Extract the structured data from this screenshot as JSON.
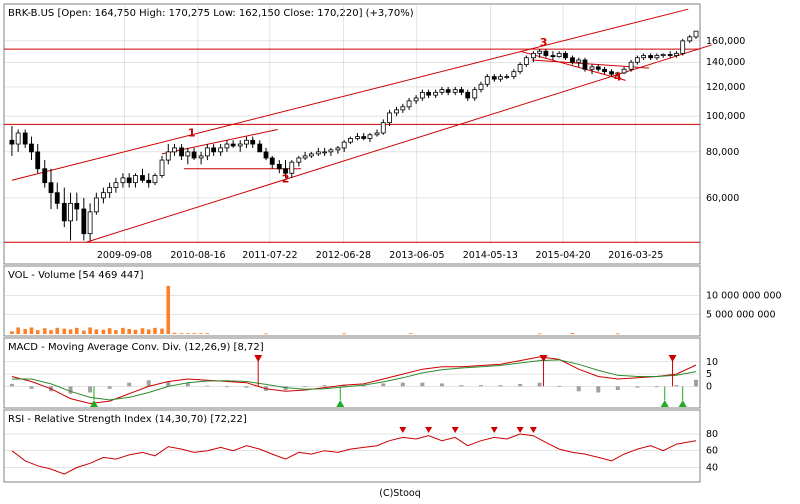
{
  "footer": "(C)Stooq",
  "colors": {
    "up": "#ffffff",
    "down": "#000000",
    "channel": "#cc0000",
    "volume": "#ff7f27",
    "macd": "#cc0000",
    "signal": "#2e8b2e",
    "hist": "#a0a0a0",
    "rsi": "#cc0000",
    "grid": "#c8c8c8",
    "buy_marker": "#22aa22",
    "sell_marker": "#cc0000"
  },
  "chart_data": [
    {
      "type": "candlestick",
      "title": "BRK-B.US [Open: 164,750  High: 170,275  Low: 162,150  Close: 170,220] (+3,70%)",
      "y_scale": "log",
      "ylim": [
        45,
        180
      ],
      "y_ticks": [
        60,
        80,
        100,
        120,
        140,
        160
      ],
      "y_tick_labels": [
        "60,000",
        "80,000",
        "100,000",
        "120,000",
        "140,000",
        "160,000"
      ],
      "x_range": [
        2008.2,
        2017.0
      ],
      "x_ticks": [
        2009.69,
        2010.63,
        2011.55,
        2012.49,
        2013.43,
        2014.37,
        2015.3,
        2016.23
      ],
      "x_tick_labels": [
        "2009-09-08",
        "2010-08-16",
        "2011-07-22",
        "2012-06-28",
        "2013-06-05",
        "2014-05-13",
        "2015-04-20",
        "2016-03-25"
      ],
      "ohlc_points": [
        [
          2008.25,
          86,
          94,
          78,
          84
        ],
        [
          2008.33,
          84,
          92,
          80,
          90
        ],
        [
          2008.42,
          90,
          92,
          82,
          84
        ],
        [
          2008.5,
          84,
          88,
          76,
          80
        ],
        [
          2008.58,
          80,
          84,
          70,
          72
        ],
        [
          2008.67,
          72,
          76,
          64,
          66
        ],
        [
          2008.75,
          66,
          72,
          56,
          62
        ],
        [
          2008.83,
          62,
          66,
          56,
          58
        ],
        [
          2008.92,
          58,
          64,
          50,
          52
        ],
        [
          2009.0,
          52,
          62,
          46,
          58
        ],
        [
          2009.08,
          58,
          62,
          52,
          56
        ],
        [
          2009.17,
          56,
          60,
          46,
          48
        ],
        [
          2009.25,
          48,
          58,
          46,
          55
        ],
        [
          2009.33,
          55,
          62,
          54,
          60
        ],
        [
          2009.42,
          60,
          64,
          58,
          62
        ],
        [
          2009.5,
          62,
          66,
          60,
          64
        ],
        [
          2009.58,
          64,
          68,
          62,
          66
        ],
        [
          2009.67,
          66,
          70,
          64,
          68
        ],
        [
          2009.75,
          68,
          70,
          64,
          66
        ],
        [
          2009.83,
          66,
          70,
          64,
          69
        ],
        [
          2009.92,
          69,
          72,
          66,
          67
        ],
        [
          2010.0,
          67,
          70,
          64,
          66
        ],
        [
          2010.08,
          66,
          70,
          65,
          69
        ],
        [
          2010.17,
          69,
          78,
          68,
          76
        ],
        [
          2010.25,
          76,
          84,
          74,
          80
        ],
        [
          2010.33,
          80,
          84,
          78,
          82
        ],
        [
          2010.42,
          82,
          84,
          76,
          78
        ],
        [
          2010.5,
          78,
          82,
          74,
          80
        ],
        [
          2010.58,
          80,
          82,
          76,
          77
        ],
        [
          2010.67,
          77,
          80,
          74,
          78
        ],
        [
          2010.75,
          78,
          84,
          76,
          82
        ],
        [
          2010.83,
          82,
          84,
          78,
          80
        ],
        [
          2010.92,
          80,
          84,
          78,
          82
        ],
        [
          2011.0,
          82,
          86,
          80,
          84
        ],
        [
          2011.08,
          84,
          86,
          82,
          83
        ],
        [
          2011.17,
          83,
          86,
          80,
          84
        ],
        [
          2011.25,
          84,
          88,
          82,
          86
        ],
        [
          2011.33,
          86,
          88,
          82,
          84
        ],
        [
          2011.42,
          84,
          86,
          80,
          80
        ],
        [
          2011.5,
          80,
          82,
          76,
          77
        ],
        [
          2011.58,
          77,
          78,
          72,
          74
        ],
        [
          2011.67,
          74,
          76,
          70,
          72
        ],
        [
          2011.75,
          72,
          76,
          68,
          70
        ],
        [
          2011.83,
          70,
          76,
          68,
          75
        ],
        [
          2011.92,
          75,
          78,
          73,
          77
        ],
        [
          2012.0,
          77,
          80,
          76,
          78
        ],
        [
          2012.08,
          78,
          80,
          77,
          79
        ],
        [
          2012.17,
          79,
          82,
          78,
          80
        ],
        [
          2012.25,
          80,
          82,
          78,
          80
        ],
        [
          2012.33,
          80,
          82,
          78,
          81
        ],
        [
          2012.42,
          81,
          83,
          79,
          82
        ],
        [
          2012.5,
          82,
          86,
          80,
          85
        ],
        [
          2012.58,
          85,
          88,
          84,
          87
        ],
        [
          2012.67,
          87,
          90,
          86,
          88
        ],
        [
          2012.75,
          88,
          90,
          86,
          87
        ],
        [
          2012.83,
          87,
          90,
          85,
          89
        ],
        [
          2012.92,
          89,
          92,
          88,
          90
        ],
        [
          2013.0,
          90,
          98,
          89,
          96
        ],
        [
          2013.08,
          96,
          104,
          94,
          102
        ],
        [
          2013.17,
          102,
          106,
          100,
          104
        ],
        [
          2013.25,
          104,
          108,
          102,
          106
        ],
        [
          2013.33,
          106,
          112,
          104,
          110
        ],
        [
          2013.42,
          110,
          114,
          108,
          112
        ],
        [
          2013.5,
          112,
          118,
          110,
          116
        ],
        [
          2013.58,
          116,
          118,
          112,
          114
        ],
        [
          2013.67,
          114,
          118,
          112,
          116
        ],
        [
          2013.75,
          116,
          120,
          114,
          118
        ],
        [
          2013.83,
          118,
          120,
          114,
          116
        ],
        [
          2013.92,
          116,
          120,
          114,
          118
        ],
        [
          2014.0,
          118,
          120,
          114,
          116
        ],
        [
          2014.08,
          116,
          118,
          110,
          112
        ],
        [
          2014.17,
          112,
          120,
          110,
          118
        ],
        [
          2014.25,
          118,
          124,
          116,
          122
        ],
        [
          2014.33,
          122,
          130,
          120,
          128
        ],
        [
          2014.42,
          128,
          130,
          124,
          126
        ],
        [
          2014.5,
          126,
          130,
          124,
          128
        ],
        [
          2014.58,
          128,
          130,
          126,
          128
        ],
        [
          2014.67,
          128,
          134,
          126,
          132
        ],
        [
          2014.75,
          132,
          140,
          130,
          138
        ],
        [
          2014.83,
          138,
          146,
          136,
          144
        ],
        [
          2014.92,
          144,
          150,
          140,
          148
        ],
        [
          2015.0,
          148,
          152,
          144,
          150
        ],
        [
          2015.08,
          150,
          152,
          144,
          146
        ],
        [
          2015.17,
          146,
          150,
          142,
          145
        ],
        [
          2015.25,
          145,
          150,
          144,
          148
        ],
        [
          2015.33,
          148,
          150,
          142,
          144
        ],
        [
          2015.42,
          144,
          146,
          138,
          140
        ],
        [
          2015.5,
          140,
          144,
          136,
          142
        ],
        [
          2015.58,
          142,
          144,
          132,
          134
        ],
        [
          2015.67,
          134,
          138,
          130,
          136
        ],
        [
          2015.75,
          136,
          138,
          132,
          134
        ],
        [
          2015.83,
          134,
          136,
          130,
          132
        ],
        [
          2015.92,
          132,
          134,
          128,
          130
        ],
        [
          2016.0,
          130,
          132,
          128,
          131
        ],
        [
          2016.08,
          131,
          136,
          130,
          134
        ],
        [
          2016.17,
          134,
          142,
          132,
          140
        ],
        [
          2016.25,
          140,
          146,
          138,
          144
        ],
        [
          2016.33,
          144,
          148,
          142,
          146
        ],
        [
          2016.42,
          146,
          148,
          142,
          144
        ],
        [
          2016.5,
          144,
          148,
          142,
          146
        ],
        [
          2016.58,
          146,
          148,
          144,
          147
        ],
        [
          2016.67,
          147,
          150,
          144,
          146
        ],
        [
          2016.75,
          146,
          150,
          144,
          148
        ],
        [
          2016.83,
          148,
          162,
          146,
          160
        ],
        [
          2016.92,
          160,
          166,
          158,
          164
        ],
        [
          2017.0,
          164,
          170,
          162,
          170
        ]
      ],
      "horizontal_lines": [
        95,
        152,
        45.5
      ],
      "trend_lines": [
        {
          "from": [
            2008.25,
            67
          ],
          "to": [
            2016.9,
            195
          ]
        },
        {
          "from": [
            2009.2,
            45.5
          ],
          "to": [
            2017.2,
            156
          ]
        },
        {
          "from": [
            2010.17,
            79
          ],
          "to": [
            2011.65,
            92
          ]
        },
        {
          "from": [
            2010.45,
            72
          ],
          "to": [
            2011.95,
            72
          ]
        },
        {
          "from": [
            2014.75,
            150
          ],
          "to": [
            2016.1,
            125
          ]
        },
        {
          "from": [
            2014.9,
            142
          ],
          "to": [
            2016.4,
            135
          ]
        }
      ],
      "annotations": [
        {
          "text": "1",
          "x": 2010.55,
          "y": 88
        },
        {
          "text": "2",
          "x": 2011.75,
          "y": 66
        },
        {
          "text": "3",
          "x": 2015.05,
          "y": 155
        },
        {
          "text": "4",
          "x": 2016.0,
          "y": 125
        }
      ]
    },
    {
      "type": "bar",
      "title": "VOL - Volume [54 469 447]",
      "ylim": [
        0,
        13500000000
      ],
      "y_ticks": [
        5000000000,
        10000000000
      ],
      "y_tick_labels": [
        "5 000 000 000",
        "10 000 000 000"
      ],
      "x_range": [
        2008.2,
        2017.0
      ],
      "x": [
        2008.25,
        2008.33,
        2008.42,
        2008.5,
        2008.58,
        2008.67,
        2008.75,
        2008.83,
        2008.92,
        2009.0,
        2009.08,
        2009.17,
        2009.25,
        2009.33,
        2009.42,
        2009.5,
        2009.58,
        2009.67,
        2009.75,
        2009.83,
        2009.92,
        2010.0,
        2010.08,
        2010.17,
        2010.25,
        2010.33,
        2010.42,
        2010.5,
        2010.58,
        2010.67,
        2010.75,
        2011.5,
        2012.5,
        2013.35,
        2015.0,
        2015.42,
        2016.0
      ],
      "values": [
        700000000,
        1700000000,
        1300000000,
        1700000000,
        1000000000,
        1500000000,
        1000000000,
        1600000000,
        1400000000,
        1200000000,
        1600000000,
        900000000,
        1700000000,
        1200000000,
        1100000000,
        1500000000,
        1000000000,
        1600000000,
        1300000000,
        1100000000,
        1500000000,
        1200000000,
        1600000000,
        1400000000,
        12500000000,
        300000000,
        200000000,
        200000000,
        200000000,
        200000000,
        200000000,
        150000000,
        150000000,
        200000000,
        150000000,
        250000000,
        150000000
      ]
    },
    {
      "type": "line",
      "title": "MACD - Moving Average Conv. Div. (12,26,9) [8,72]",
      "ylim": [
        -8,
        14
      ],
      "y_ticks": [
        0,
        5,
        10
      ],
      "y_tick_labels": [
        "0",
        "5",
        "10"
      ],
      "x_range": [
        2008.2,
        2017.0
      ],
      "x": [
        2008.25,
        2008.5,
        2008.75,
        2009.0,
        2009.25,
        2009.5,
        2009.75,
        2010.0,
        2010.25,
        2010.5,
        2010.75,
        2011.0,
        2011.25,
        2011.5,
        2011.75,
        2012.0,
        2012.25,
        2012.5,
        2012.75,
        2013.0,
        2013.25,
        2013.5,
        2013.75,
        2014.0,
        2014.25,
        2014.5,
        2014.75,
        2015.0,
        2015.25,
        2015.5,
        2015.75,
        2016.0,
        2016.25,
        2016.5,
        2016.75,
        2017.0
      ],
      "series": [
        {
          "values": [
            4,
            2,
            -1,
            -5,
            -7,
            -6,
            -3,
            0,
            2,
            3,
            2.5,
            2,
            1.5,
            -1,
            -2,
            -1.5,
            -0.5,
            0.5,
            1,
            3,
            5,
            7,
            8,
            8,
            8.5,
            9,
            10.5,
            12,
            11,
            7,
            4,
            3,
            3.5,
            4,
            5,
            8.7
          ]
        },
        {
          "values": [
            3,
            3,
            1,
            -2,
            -4.5,
            -5.5,
            -4.5,
            -2.5,
            0,
            1.5,
            2.2,
            2.3,
            2,
            0.8,
            -0.5,
            -1.2,
            -1,
            -0.2,
            0.5,
            1.8,
            3.5,
            5.5,
            6.8,
            7.5,
            8,
            8.5,
            9.5,
            10.5,
            10.8,
            9,
            6.5,
            4.5,
            4,
            4,
            4.5,
            6
          ]
        }
      ],
      "histogram": [
        1,
        -1,
        -2,
        -3,
        -2.5,
        -1,
        1.5,
        2.5,
        2,
        1.5,
        0.3,
        -0.3,
        -0.5,
        -1.8,
        -1.5,
        -0.3,
        0.5,
        0.7,
        0.5,
        1.2,
        1.5,
        1.5,
        1.2,
        0.5,
        0.5,
        0.5,
        1,
        1.5,
        0.2,
        -2,
        -2.5,
        -1.5,
        -0.5,
        0,
        0.5,
        2.7
      ],
      "sell_markers": [
        2011.4,
        2015.05,
        2016.7
      ],
      "buy_markers": [
        2009.3,
        2012.45,
        2016.6,
        2016.83
      ]
    },
    {
      "type": "line",
      "title": "RSI - Relative Strength Index (14,30,70) [72,22]",
      "ylim": [
        25,
        92
      ],
      "y_ticks": [
        40,
        60,
        80
      ],
      "y_tick_labels": [
        "40",
        "60",
        "80"
      ],
      "x_range": [
        2008.2,
        2017.0
      ],
      "x": [
        2008.25,
        2008.42,
        2008.58,
        2008.75,
        2008.92,
        2009.08,
        2009.25,
        2009.42,
        2009.58,
        2009.75,
        2009.92,
        2010.08,
        2010.25,
        2010.42,
        2010.58,
        2010.75,
        2010.92,
        2011.08,
        2011.25,
        2011.42,
        2011.58,
        2011.75,
        2011.92,
        2012.08,
        2012.25,
        2012.42,
        2012.58,
        2012.75,
        2012.92,
        2013.08,
        2013.25,
        2013.42,
        2013.58,
        2013.75,
        2013.92,
        2014.08,
        2014.25,
        2014.42,
        2014.58,
        2014.75,
        2014.92,
        2015.08,
        2015.25,
        2015.42,
        2015.58,
        2015.75,
        2015.92,
        2016.08,
        2016.25,
        2016.42,
        2016.58,
        2016.75,
        2017.0
      ],
      "values": [
        60,
        48,
        42,
        38,
        32,
        40,
        45,
        52,
        50,
        55,
        58,
        54,
        65,
        62,
        58,
        60,
        64,
        60,
        66,
        62,
        56,
        50,
        58,
        56,
        60,
        58,
        62,
        64,
        66,
        72,
        76,
        74,
        78,
        72,
        76,
        66,
        72,
        76,
        74,
        80,
        78,
        70,
        62,
        58,
        56,
        52,
        48,
        56,
        62,
        66,
        60,
        68,
        72
      ]
    }
  ]
}
